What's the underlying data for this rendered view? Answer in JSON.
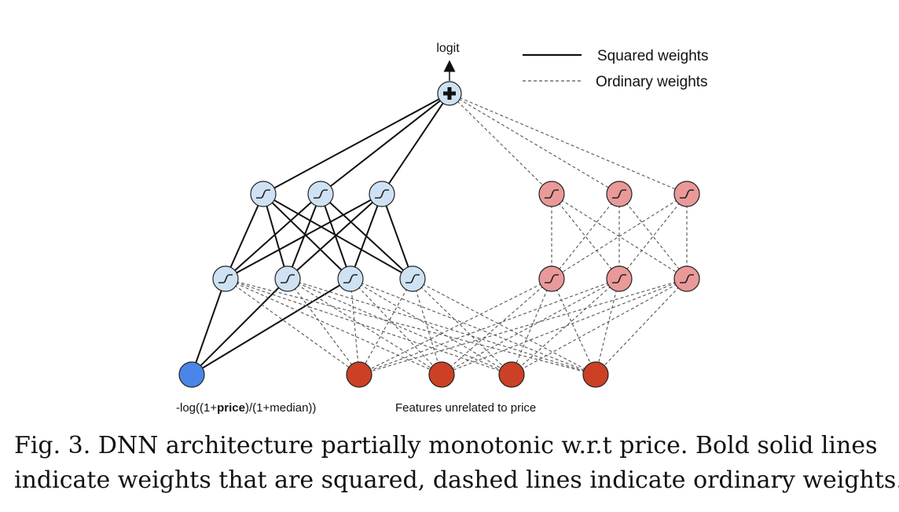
{
  "diagram": {
    "output_label": "logit",
    "legend": {
      "solid": "Squared weights",
      "dashed": "Ordinary weights"
    },
    "input_label_prefix": "-log((1+",
    "input_label_bold": "price",
    "input_label_suffix": ")/(1+median))",
    "features_label": "Features unrelated to price",
    "colors": {
      "monotonic_hidden": "#cfe2f3",
      "ordinary_hidden": "#ea9999",
      "price_input": "#4a86e8",
      "feature_input": "#cc4125",
      "output_node": "#cfe2f3"
    },
    "icons": {
      "output": "plus-icon",
      "hidden": "sigmoid-icon"
    }
  },
  "caption": {
    "line1": "Fig. 3.  DNN architecture partially monotonic w.r.t price. Bold solid lines",
    "line2": "indicate weights that are squared, dashed lines indicate ordinary weights."
  }
}
